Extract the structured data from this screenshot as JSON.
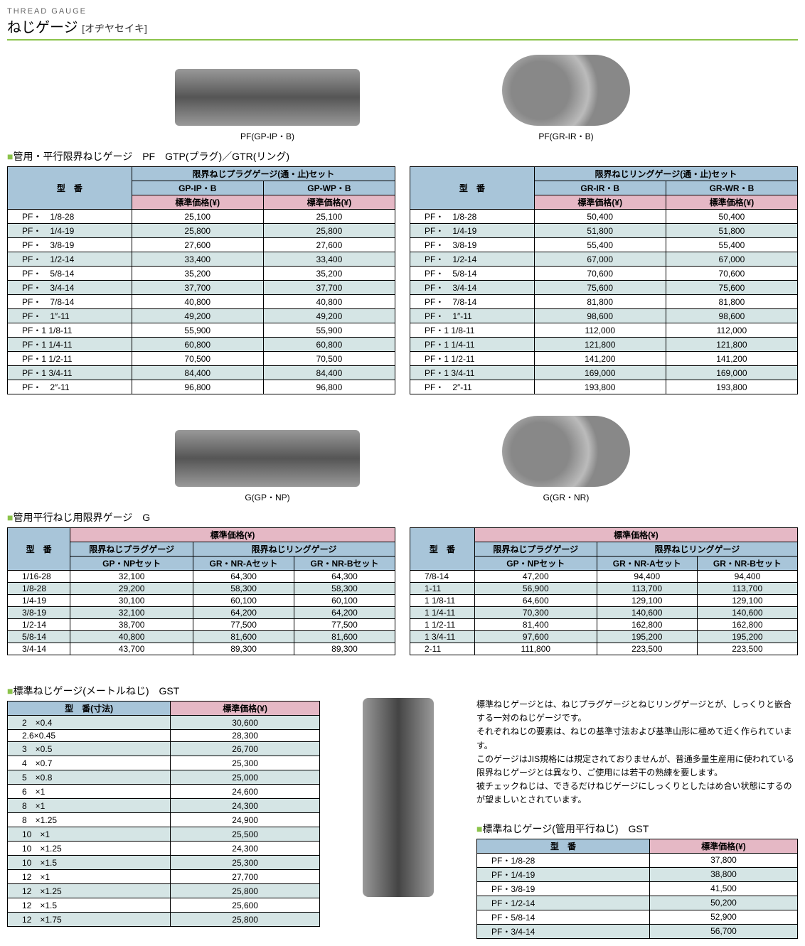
{
  "header": {
    "small": "THREAD GAUGE",
    "title": "ねじゲージ",
    "sub": "[オヂヤセイキ]"
  },
  "images": {
    "pf_plug": "PF(GP-IP・B)",
    "pf_ring": "PF(GR-IR・B)",
    "g_plug": "G(GP・NP)",
    "g_ring": "G(GR・NR)"
  },
  "section1": {
    "title": "管用・平行限界ねじゲージ　PF　GTP(プラグ)／GTR(リング)",
    "left": {
      "header1": "限界ねじプラグゲージ(通・止)セット",
      "model": "型　番",
      "col1": "GP-IP・B",
      "col2": "GP-WP・B",
      "price": "標準価格(¥)",
      "rows": [
        {
          "m": "PF・　1/8-28",
          "p1": "25,100",
          "p2": "25,100"
        },
        {
          "m": "PF・　1/4-19",
          "p1": "25,800",
          "p2": "25,800"
        },
        {
          "m": "PF・　3/8-19",
          "p1": "27,600",
          "p2": "27,600"
        },
        {
          "m": "PF・　1/2-14",
          "p1": "33,400",
          "p2": "33,400"
        },
        {
          "m": "PF・　5/8-14",
          "p1": "35,200",
          "p2": "35,200"
        },
        {
          "m": "PF・　3/4-14",
          "p1": "37,700",
          "p2": "37,700"
        },
        {
          "m": "PF・　7/8-14",
          "p1": "40,800",
          "p2": "40,800"
        },
        {
          "m": "PF・　1″-11",
          "p1": "49,200",
          "p2": "49,200"
        },
        {
          "m": "PF・1 1/8-11",
          "p1": "55,900",
          "p2": "55,900"
        },
        {
          "m": "PF・1 1/4-11",
          "p1": "60,800",
          "p2": "60,800"
        },
        {
          "m": "PF・1 1/2-11",
          "p1": "70,500",
          "p2": "70,500"
        },
        {
          "m": "PF・1 3/4-11",
          "p1": "84,400",
          "p2": "84,400"
        },
        {
          "m": "PF・　2″-11",
          "p1": "96,800",
          "p2": "96,800"
        }
      ]
    },
    "right": {
      "header1": "限界ねじリングゲージ(通・止)セット",
      "model": "型　番",
      "col1": "GR-IR・B",
      "col2": "GR-WR・B",
      "price": "標準価格(¥)",
      "rows": [
        {
          "m": "PF・　1/8-28",
          "p1": "50,400",
          "p2": "50,400"
        },
        {
          "m": "PF・　1/4-19",
          "p1": "51,800",
          "p2": "51,800"
        },
        {
          "m": "PF・　3/8-19",
          "p1": "55,400",
          "p2": "55,400"
        },
        {
          "m": "PF・　1/2-14",
          "p1": "67,000",
          "p2": "67,000"
        },
        {
          "m": "PF・　5/8-14",
          "p1": "70,600",
          "p2": "70,600"
        },
        {
          "m": "PF・　3/4-14",
          "p1": "75,600",
          "p2": "75,600"
        },
        {
          "m": "PF・　7/8-14",
          "p1": "81,800",
          "p2": "81,800"
        },
        {
          "m": "PF・　1″-11",
          "p1": "98,600",
          "p2": "98,600"
        },
        {
          "m": "PF・1 1/8-11",
          "p1": "112,000",
          "p2": "112,000"
        },
        {
          "m": "PF・1 1/4-11",
          "p1": "121,800",
          "p2": "121,800"
        },
        {
          "m": "PF・1 1/2-11",
          "p1": "141,200",
          "p2": "141,200"
        },
        {
          "m": "PF・1 3/4-11",
          "p1": "169,000",
          "p2": "169,000"
        },
        {
          "m": "PF・　2″-11",
          "p1": "193,800",
          "p2": "193,800"
        }
      ]
    }
  },
  "section2": {
    "title": "管用平行ねじ用限界ゲージ　G",
    "price": "標準価格(¥)",
    "model": "型　番",
    "plug": "限界ねじプラグゲージ",
    "ring": "限界ねじリングゲージ",
    "c1": "GP・NPセット",
    "c2": "GR・NR-Aセット",
    "c3": "GR・NR-Bセット",
    "left_rows": [
      {
        "m": "1/16-28",
        "p1": "32,100",
        "p2": "64,300",
        "p3": "64,300"
      },
      {
        "m": "1/8-28",
        "p1": "29,200",
        "p2": "58,300",
        "p3": "58,300"
      },
      {
        "m": "1/4-19",
        "p1": "30,100",
        "p2": "60,100",
        "p3": "60,100"
      },
      {
        "m": "3/8-19",
        "p1": "32,100",
        "p2": "64,200",
        "p3": "64,200"
      },
      {
        "m": "1/2-14",
        "p1": "38,700",
        "p2": "77,500",
        "p3": "77,500"
      },
      {
        "m": "5/8-14",
        "p1": "40,800",
        "p2": "81,600",
        "p3": "81,600"
      },
      {
        "m": "3/4-14",
        "p1": "43,700",
        "p2": "89,300",
        "p3": "89,300"
      }
    ],
    "right_rows": [
      {
        "m": "7/8-14",
        "p1": "47,200",
        "p2": "94,400",
        "p3": "94,400"
      },
      {
        "m": "1-11",
        "p1": "56,900",
        "p2": "113,700",
        "p3": "113,700"
      },
      {
        "m": "1 1/8-11",
        "p1": "64,600",
        "p2": "129,100",
        "p3": "129,100"
      },
      {
        "m": "1 1/4-11",
        "p1": "70,300",
        "p2": "140,600",
        "p3": "140,600"
      },
      {
        "m": "1 1/2-11",
        "p1": "81,400",
        "p2": "162,800",
        "p3": "162,800"
      },
      {
        "m": "1 3/4-11",
        "p1": "97,600",
        "p2": "195,200",
        "p3": "195,200"
      },
      {
        "m": "2-11",
        "p1": "111,800",
        "p2": "223,500",
        "p3": "223,500"
      }
    ]
  },
  "section3": {
    "title": "標準ねじゲージ(メートルねじ)　GST",
    "model": "型　番(寸法)",
    "price": "標準価格(¥)",
    "rows": [
      {
        "m": "2　×0.4",
        "p": "30,600"
      },
      {
        "m": "2.6×0.45",
        "p": "28,300"
      },
      {
        "m": "3　×0.5",
        "p": "26,700"
      },
      {
        "m": "4　×0.7",
        "p": "25,300"
      },
      {
        "m": "5　×0.8",
        "p": "25,000"
      },
      {
        "m": "6　×1",
        "p": "24,600"
      },
      {
        "m": "8　×1",
        "p": "24,300"
      },
      {
        "m": "8　×1.25",
        "p": "24,900"
      },
      {
        "m": "10　×1",
        "p": "25,500"
      },
      {
        "m": "10　×1.25",
        "p": "24,300"
      },
      {
        "m": "10　×1.5",
        "p": "25,300"
      },
      {
        "m": "12　×1",
        "p": "27,700"
      },
      {
        "m": "12　×1.25",
        "p": "25,800"
      },
      {
        "m": "12　×1.5",
        "p": "25,600"
      },
      {
        "m": "12　×1.75",
        "p": "25,800"
      }
    ]
  },
  "description": {
    "p1": "標準ねじゲージとは、ねじプラグゲージとねじリングゲージとが、しっくりと嵌合する一対のねじゲージです。",
    "p2": "それぞれねじの要素は、ねじの基準寸法および基準山形に極めて近く作られています。",
    "p3": "このゲージはJIS規格には規定されておりませんが、普通多量生産用に使われている限界ねじゲージとは異なり、ご使用には若干の熟練を要します。",
    "p4": "被チェックねじは、できるだけねじゲージにしっくりとしたはめ合い状態にするのが望ましいとされています。"
  },
  "section4": {
    "title": "標準ねじゲージ(管用平行ねじ)　GST",
    "model": "型　番",
    "price": "標準価格(¥)",
    "rows": [
      {
        "m": "PF・1/8-28",
        "p": "37,800"
      },
      {
        "m": "PF・1/4-19",
        "p": "38,800"
      },
      {
        "m": "PF・3/8-19",
        "p": "41,500"
      },
      {
        "m": "PF・1/2-14",
        "p": "50,200"
      },
      {
        "m": "PF・5/8-14",
        "p": "52,900"
      },
      {
        "m": "PF・3/4-14",
        "p": "56,700"
      }
    ]
  },
  "colors": {
    "hdr_blue": "#a8c5d9",
    "hdr_pink": "#e5b8c5",
    "row_alt": "#d5e5e5",
    "accent": "#8bc34a"
  }
}
